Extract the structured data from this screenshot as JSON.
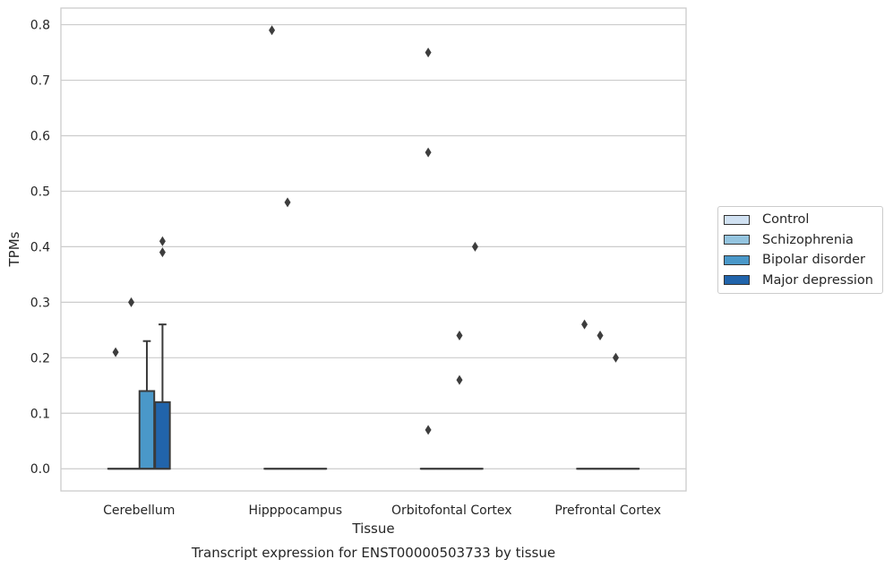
{
  "chart_data": {
    "type": "box",
    "title": "Transcript expression for ENST00000503733 by tissue",
    "xlabel": "Tissue",
    "ylabel": "TPMs",
    "ylim": [
      -0.04,
      0.83
    ],
    "yticks": [
      0.0,
      0.1,
      0.2,
      0.3,
      0.4,
      0.5,
      0.6,
      0.7,
      0.8
    ],
    "ytick_labels": [
      "0.0",
      "0.1",
      "0.2",
      "0.3",
      "0.4",
      "0.5",
      "0.6",
      "0.7",
      "0.8"
    ],
    "grid": true,
    "legend_position": "right",
    "categories": [
      "Cerebellum",
      "Hipppocampus",
      "Orbitofontal Cortex",
      "Prefrontal Cortex"
    ],
    "series": [
      {
        "name": "Control",
        "color": "#d0e1f2",
        "boxes": [
          {
            "q1": 0,
            "median": 0,
            "q3": 0,
            "whislo": 0,
            "whishi": 0,
            "fliers": [
              0.21
            ]
          },
          {
            "q1": 0,
            "median": 0,
            "q3": 0,
            "whislo": 0,
            "whishi": 0,
            "fliers": [
              0.79
            ]
          },
          {
            "q1": 0,
            "median": 0,
            "q3": 0,
            "whislo": 0,
            "whishi": 0,
            "fliers": [
              0.75,
              0.57,
              0.07
            ]
          },
          {
            "q1": 0,
            "median": 0,
            "q3": 0,
            "whislo": 0,
            "whishi": 0,
            "fliers": [
              0.26
            ]
          }
        ]
      },
      {
        "name": "Schizophrenia",
        "color": "#94c4df",
        "boxes": [
          {
            "q1": 0,
            "median": 0,
            "q3": 0,
            "whislo": 0,
            "whishi": 0,
            "fliers": [
              0.3
            ]
          },
          {
            "q1": 0,
            "median": 0,
            "q3": 0,
            "whislo": 0,
            "whishi": 0,
            "fliers": [
              0.48
            ]
          },
          {
            "q1": 0,
            "median": 0,
            "q3": 0,
            "whislo": 0,
            "whishi": 0,
            "fliers": []
          },
          {
            "q1": 0,
            "median": 0,
            "q3": 0,
            "whislo": 0,
            "whishi": 0,
            "fliers": [
              0.24
            ]
          }
        ]
      },
      {
        "name": "Bipolar disorder",
        "color": "#4a98c9",
        "boxes": [
          {
            "q1": 0,
            "median": 0,
            "q3": 0.14,
            "whislo": 0,
            "whishi": 0.23,
            "fliers": []
          },
          {
            "q1": 0,
            "median": 0,
            "q3": 0,
            "whislo": 0,
            "whishi": 0,
            "fliers": []
          },
          {
            "q1": 0,
            "median": 0,
            "q3": 0,
            "whislo": 0,
            "whishi": 0,
            "fliers": [
              0.24,
              0.16
            ]
          },
          {
            "q1": 0,
            "median": 0,
            "q3": 0,
            "whislo": 0,
            "whishi": 0,
            "fliers": [
              0.2
            ]
          }
        ]
      },
      {
        "name": "Major depression",
        "color": "#2164ab",
        "boxes": [
          {
            "q1": 0,
            "median": 0,
            "q3": 0.12,
            "whislo": 0,
            "whishi": 0.26,
            "fliers": [
              0.41,
              0.39
            ]
          },
          {
            "q1": 0,
            "median": 0,
            "q3": 0,
            "whislo": 0,
            "whishi": 0,
            "fliers": []
          },
          {
            "q1": 0,
            "median": 0,
            "q3": 0,
            "whislo": 0,
            "whishi": 0,
            "fliers": [
              0.4
            ]
          },
          {
            "q1": 0,
            "median": 0,
            "q3": 0,
            "whislo": 0,
            "whishi": 0,
            "fliers": []
          }
        ]
      }
    ]
  }
}
